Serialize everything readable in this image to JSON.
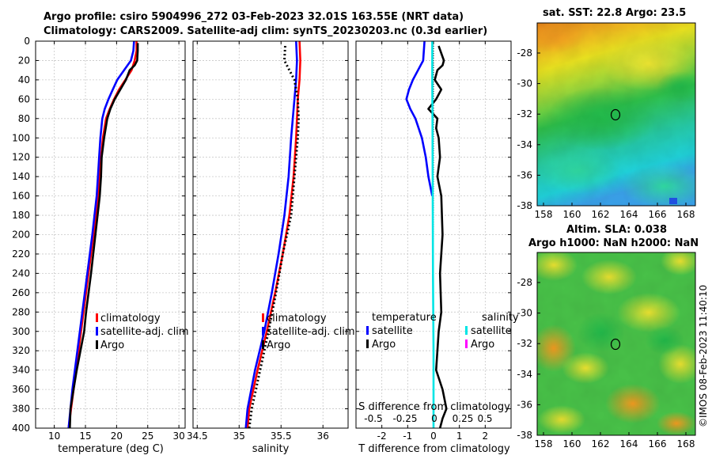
{
  "header": {
    "line1": "Argo profile: csiro 5904996_272 03-Feb-2023 32.01S 163.55E (NRT data)",
    "line2": "Climatology: CARS2009. Satellite-adj clim: synTS_20230203.nc (0.3d earlier)"
  },
  "colors": {
    "climatology": "#ff0000",
    "satellite": "#0000ff",
    "argo": "#000000",
    "satellite_salt": "#00e5e5",
    "argo_salt": "#ff00ff"
  },
  "chart_data": [
    {
      "id": "temperature",
      "type": "line",
      "xlabel": "temperature (deg C)",
      "xlim": [
        7,
        31
      ],
      "xticks": [
        10,
        15,
        20,
        25,
        30
      ],
      "ylim": [
        400,
        0
      ],
      "yticks": [
        0,
        20,
        40,
        60,
        80,
        100,
        120,
        140,
        160,
        180,
        200,
        220,
        240,
        260,
        280,
        300,
        320,
        340,
        360,
        380,
        400
      ],
      "series": [
        {
          "name": "climatology",
          "style": "solid",
          "depth": [
            0,
            10,
            20,
            30,
            40,
            50,
            60,
            70,
            80,
            100,
            120,
            140,
            160,
            200,
            240,
            280,
            320,
            360,
            400
          ],
          "values": [
            23.2,
            23.2,
            22.9,
            22.4,
            21.4,
            20.4,
            19.6,
            18.9,
            18.3,
            17.8,
            17.5,
            17.3,
            17.0,
            16.3,
            15.5,
            14.7,
            13.9,
            13.1,
            12.3
          ]
        },
        {
          "name": "satellite-adj. clim",
          "style": "solid",
          "depth": [
            0,
            10,
            20,
            30,
            40,
            50,
            60,
            70,
            80,
            100,
            120,
            140,
            160,
            200,
            240,
            280,
            320,
            360,
            400
          ],
          "values": [
            22.8,
            22.7,
            22.3,
            21.2,
            20.1,
            19.4,
            18.7,
            18.1,
            17.7,
            17.4,
            17.2,
            17.0,
            16.8,
            16.1,
            15.3,
            14.5,
            13.7,
            12.9,
            12.3
          ]
        },
        {
          "name": "Argo",
          "style": "solid",
          "depth": [
            2,
            10,
            20,
            25,
            30,
            40,
            50,
            60,
            70,
            80,
            100,
            120,
            140,
            160,
            200,
            240,
            280,
            300,
            320,
            340,
            360,
            380,
            400
          ],
          "values": [
            23.4,
            23.4,
            23.3,
            22.9,
            22.1,
            21.5,
            20.6,
            19.7,
            19.0,
            18.5,
            18.0,
            17.6,
            17.5,
            17.3,
            16.6,
            15.9,
            15.1,
            14.8,
            14.2,
            13.6,
            13.1,
            12.6,
            12.5
          ]
        }
      ],
      "legend": [
        "climatology",
        "satellite-adj. clim",
        "Argo"
      ]
    },
    {
      "id": "salinity",
      "type": "line",
      "xlabel": "salinity",
      "xlim": [
        34.45,
        36.3
      ],
      "xticks": [
        34.5,
        35,
        35.5,
        36
      ],
      "xticklabels": [
        "34.5",
        "35",
        "35.5",
        "36"
      ],
      "ylim": [
        400,
        0
      ],
      "series": [
        {
          "name": "climatology",
          "style": "solid",
          "depth": [
            0,
            20,
            40,
            60,
            80,
            100,
            140,
            180,
            220,
            260,
            300,
            340,
            380,
            400
          ],
          "values": [
            35.72,
            35.73,
            35.72,
            35.7,
            35.69,
            35.68,
            35.65,
            35.6,
            35.52,
            35.43,
            35.33,
            35.22,
            35.12,
            35.1
          ]
        },
        {
          "name": "satellite-adj. clim",
          "style": "solid",
          "depth": [
            0,
            20,
            40,
            60,
            80,
            100,
            140,
            180,
            220,
            260,
            300,
            340,
            380,
            400
          ],
          "values": [
            35.68,
            35.69,
            35.68,
            35.66,
            35.64,
            35.62,
            35.59,
            35.54,
            35.47,
            35.39,
            35.3,
            35.19,
            35.1,
            35.08
          ]
        },
        {
          "name": "Argo",
          "style": "dotted",
          "depth": [
            5,
            20,
            30,
            40,
            60,
            80,
            100,
            140,
            180,
            200,
            220,
            260,
            300,
            340,
            380,
            400
          ],
          "values": [
            35.55,
            35.54,
            35.6,
            35.66,
            35.7,
            35.71,
            35.7,
            35.66,
            35.62,
            35.57,
            35.52,
            35.44,
            35.35,
            35.25,
            35.15,
            35.12
          ]
        }
      ],
      "legend": [
        "climatology",
        "satellite-adj. clim",
        "Argo"
      ]
    },
    {
      "id": "difference",
      "type": "line",
      "xlabel": "T difference from climatology",
      "xlim": [
        -3,
        3
      ],
      "xticks": [
        -2,
        -1,
        0,
        1,
        2
      ],
      "secondary_xlabel": "S difference from climatology",
      "secondary_xticklabels": [
        "-0.5",
        "-0.25",
        "0",
        "0.25",
        "0.5"
      ],
      "ylim": [
        400,
        0
      ],
      "series": [
        {
          "name": "satellite (temperature)",
          "style": "solid",
          "depth": [
            0,
            20,
            30,
            40,
            50,
            60,
            70,
            80,
            100,
            120,
            140,
            160
          ],
          "values": [
            -0.35,
            -0.4,
            -0.6,
            -0.8,
            -0.95,
            -1.05,
            -0.9,
            -0.7,
            -0.45,
            -0.3,
            -0.2,
            -0.05
          ]
        },
        {
          "name": "Argo (temperature)",
          "style": "solid",
          "depth": [
            5,
            20,
            25,
            30,
            40,
            50,
            60,
            70,
            80,
            90,
            100,
            120,
            140,
            160,
            200,
            240,
            280,
            300,
            320,
            340,
            360,
            380,
            390,
            400
          ],
          "values": [
            0.2,
            0.4,
            0.35,
            0.15,
            0.05,
            0.3,
            0.1,
            -0.2,
            0.15,
            0.1,
            0.2,
            0.25,
            0.15,
            0.3,
            0.35,
            0.25,
            0.3,
            0.2,
            0.15,
            0.1,
            0.35,
            0.5,
            0.35,
            0.25
          ]
        },
        {
          "name": "satellite (salinity)",
          "style": "solid",
          "depth": [
            0,
            40,
            80,
            160,
            240,
            320,
            400
          ],
          "values": [
            -0.05,
            -0.05,
            -0.04,
            -0.03,
            -0.02,
            0.0,
            0.0
          ]
        }
      ],
      "legend_temperature_title": "temperature",
      "legend_salinity_title": "salinity",
      "legend_items": [
        "satellite",
        "Argo"
      ]
    }
  ],
  "maps": {
    "sst": {
      "title": "sat. SST: 22.8 Argo: 23.5",
      "x_ticks": [
        "158",
        "160",
        "162",
        "164",
        "166",
        "168"
      ],
      "y_ticks": [
        "-28",
        "-30",
        "-32",
        "-34",
        "-36",
        "-38"
      ]
    },
    "sla": {
      "title_line1": "Altim. SLA: 0.038",
      "title_line2": "Argo h1000: NaN h2000: NaN",
      "x_ticks": [
        "158",
        "160",
        "162",
        "164",
        "166",
        "168"
      ],
      "y_ticks": [
        "-28",
        "-30",
        "-32",
        "-34",
        "-36",
        "-38"
      ]
    }
  },
  "watermark": "©IMOS 08-Feb-2023 11:40:10"
}
